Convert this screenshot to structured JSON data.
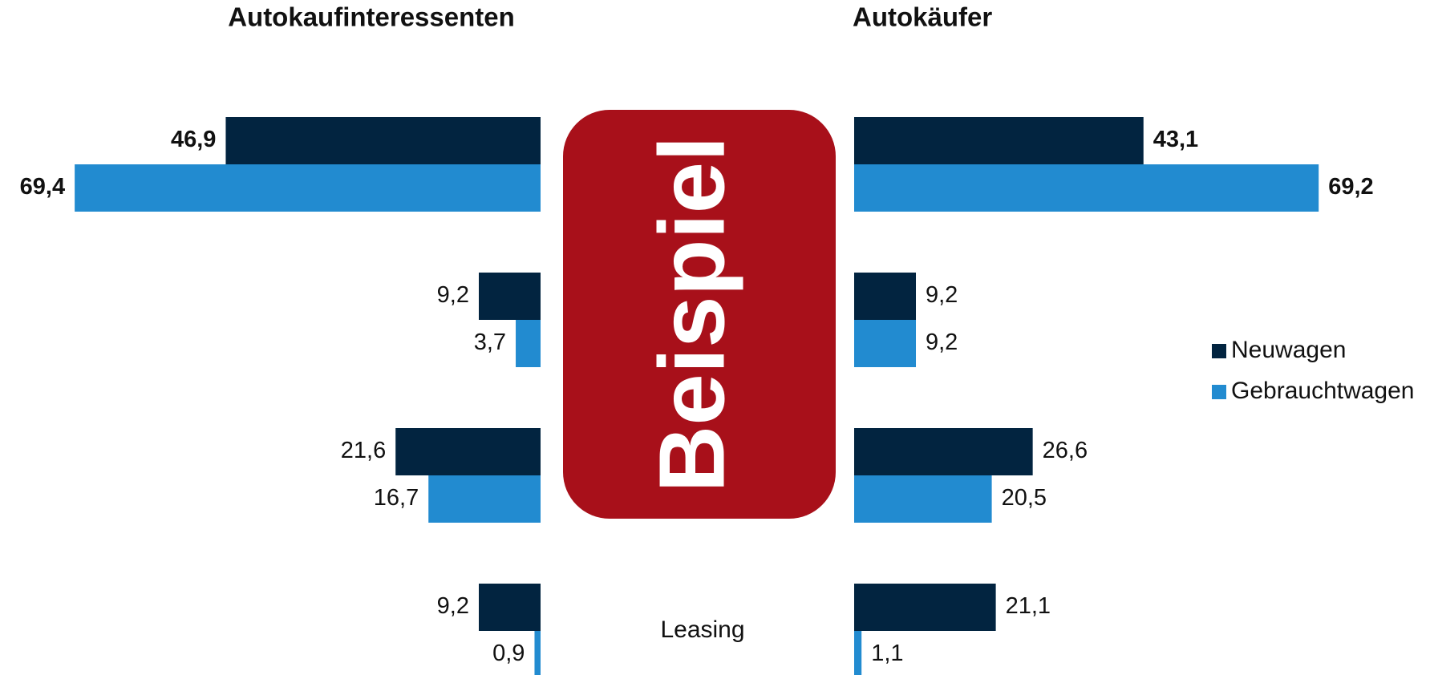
{
  "chart_data": {
    "type": "butterfly-bar",
    "categories": [
      null,
      null,
      null,
      "Leasing"
    ],
    "panels": [
      {
        "title": "Autokaufinteressenten",
        "direction": "left"
      },
      {
        "title": "Autokäufer",
        "direction": "right"
      }
    ],
    "series": [
      {
        "name": "Neuwagen",
        "color": "#022440",
        "values": [
          [
            46.9,
            9.2,
            21.6,
            9.2
          ],
          [
            43.1,
            9.2,
            26.6,
            21.1
          ]
        ],
        "value_labels": [
          [
            "46,9",
            "9,2",
            "21,6",
            "9,2"
          ],
          [
            "43,1",
            "9,2",
            "26,6",
            "21,1"
          ]
        ]
      },
      {
        "name": "Gebrauchtwagen",
        "color": "#228bd0",
        "values": [
          [
            69.4,
            3.7,
            16.7,
            0.9
          ],
          [
            69.2,
            9.2,
            20.5,
            1.1
          ]
        ],
        "value_labels": [
          [
            "69,4",
            "3,7",
            "16,7",
            "0,9"
          ],
          [
            "69,2",
            "9,2",
            "20,5",
            "1,1"
          ]
        ]
      }
    ],
    "annotation": "Beispiel",
    "legend": "right"
  }
}
